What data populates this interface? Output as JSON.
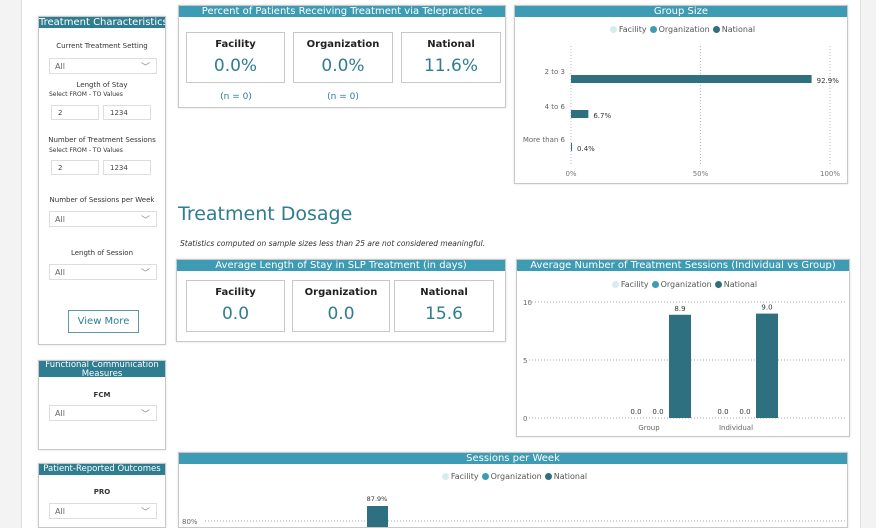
{
  "colors": {
    "header": "#3d9bb3",
    "facility": "#d6ecf0",
    "organization": "#3d9bb3",
    "national": "#2e7080"
  },
  "legend": [
    "Facility",
    "Organization",
    "National"
  ],
  "sidebar": {
    "treatment": {
      "title": "Treatment Characteristics",
      "setting_label": "Current Treatment Setting",
      "setting_value": "All",
      "los_label": "Length of Stay",
      "los_sub": "Select FROM - TO Values",
      "los_from": "2",
      "los_to": "1234",
      "sessions_label": "Number of Treatment Sessions",
      "sessions_sub": "Select FROM - TO Values",
      "sessions_from": "2",
      "sessions_to": "1234",
      "per_week_label": "Number of Sessions per Week",
      "per_week_value": "All",
      "length_label": "Length of Session",
      "length_value": "All",
      "view_more": "View More"
    },
    "fcm": {
      "title": "Functional Communication Measures",
      "label": "FCM",
      "value": "All"
    },
    "pro": {
      "title": "Patient-Reported Outcomes",
      "label": "PRO",
      "value": "All"
    }
  },
  "telepractice": {
    "title": "Percent of Patients Receiving Treatment via Telepractice",
    "cards": [
      {
        "label": "Facility",
        "value": "0.0%",
        "n": "(n = 0)"
      },
      {
        "label": "Organization",
        "value": "0.0%",
        "n": "(n = 0)"
      },
      {
        "label": "National",
        "value": "11.6%"
      }
    ]
  },
  "dosage": {
    "heading": "Treatment Dosage",
    "note": "Statistics computed on sample sizes less than 25 are not considered meaningful."
  },
  "los": {
    "title": "Average Length of Stay in SLP Treatment (in days)",
    "cards": [
      {
        "label": "Facility",
        "value": "0.0"
      },
      {
        "label": "Organization",
        "value": "0.0"
      },
      {
        "label": "National",
        "value": "15.6"
      }
    ]
  },
  "chart_data": [
    {
      "title": "Group Size",
      "type": "bar",
      "orientation": "horizontal",
      "categories": [
        "2 to 3",
        "4 to 6",
        "More than 6"
      ],
      "series": [
        {
          "name": "National",
          "values": [
            92.9,
            6.7,
            0.4
          ],
          "labels": [
            "92.9%",
            "6.7%",
            "0.4%"
          ]
        }
      ],
      "xlim": [
        0,
        100
      ],
      "xticks": [
        "0%",
        "50%",
        "100%"
      ],
      "legend": "top"
    },
    {
      "title": "Average Number of Treatment Sessions (Individual vs Group)",
      "type": "bar",
      "categories": [
        "Group",
        "Individual"
      ],
      "series": [
        {
          "name": "Facility",
          "values": [
            0.0,
            0.0
          ]
        },
        {
          "name": "Organization",
          "values": [
            0.0,
            0.0
          ]
        },
        {
          "name": "National",
          "values": [
            8.9,
            9.0
          ]
        }
      ],
      "ylim": [
        0,
        10
      ],
      "yticks": [
        "0",
        "5",
        "10"
      ],
      "legend": "top"
    },
    {
      "title": "Sessions per Week",
      "type": "bar",
      "series": [
        {
          "name": "National",
          "values": [
            87.9
          ],
          "labels": [
            "87.9%"
          ]
        }
      ],
      "yticks": [
        "80%"
      ],
      "legend": "top"
    }
  ]
}
